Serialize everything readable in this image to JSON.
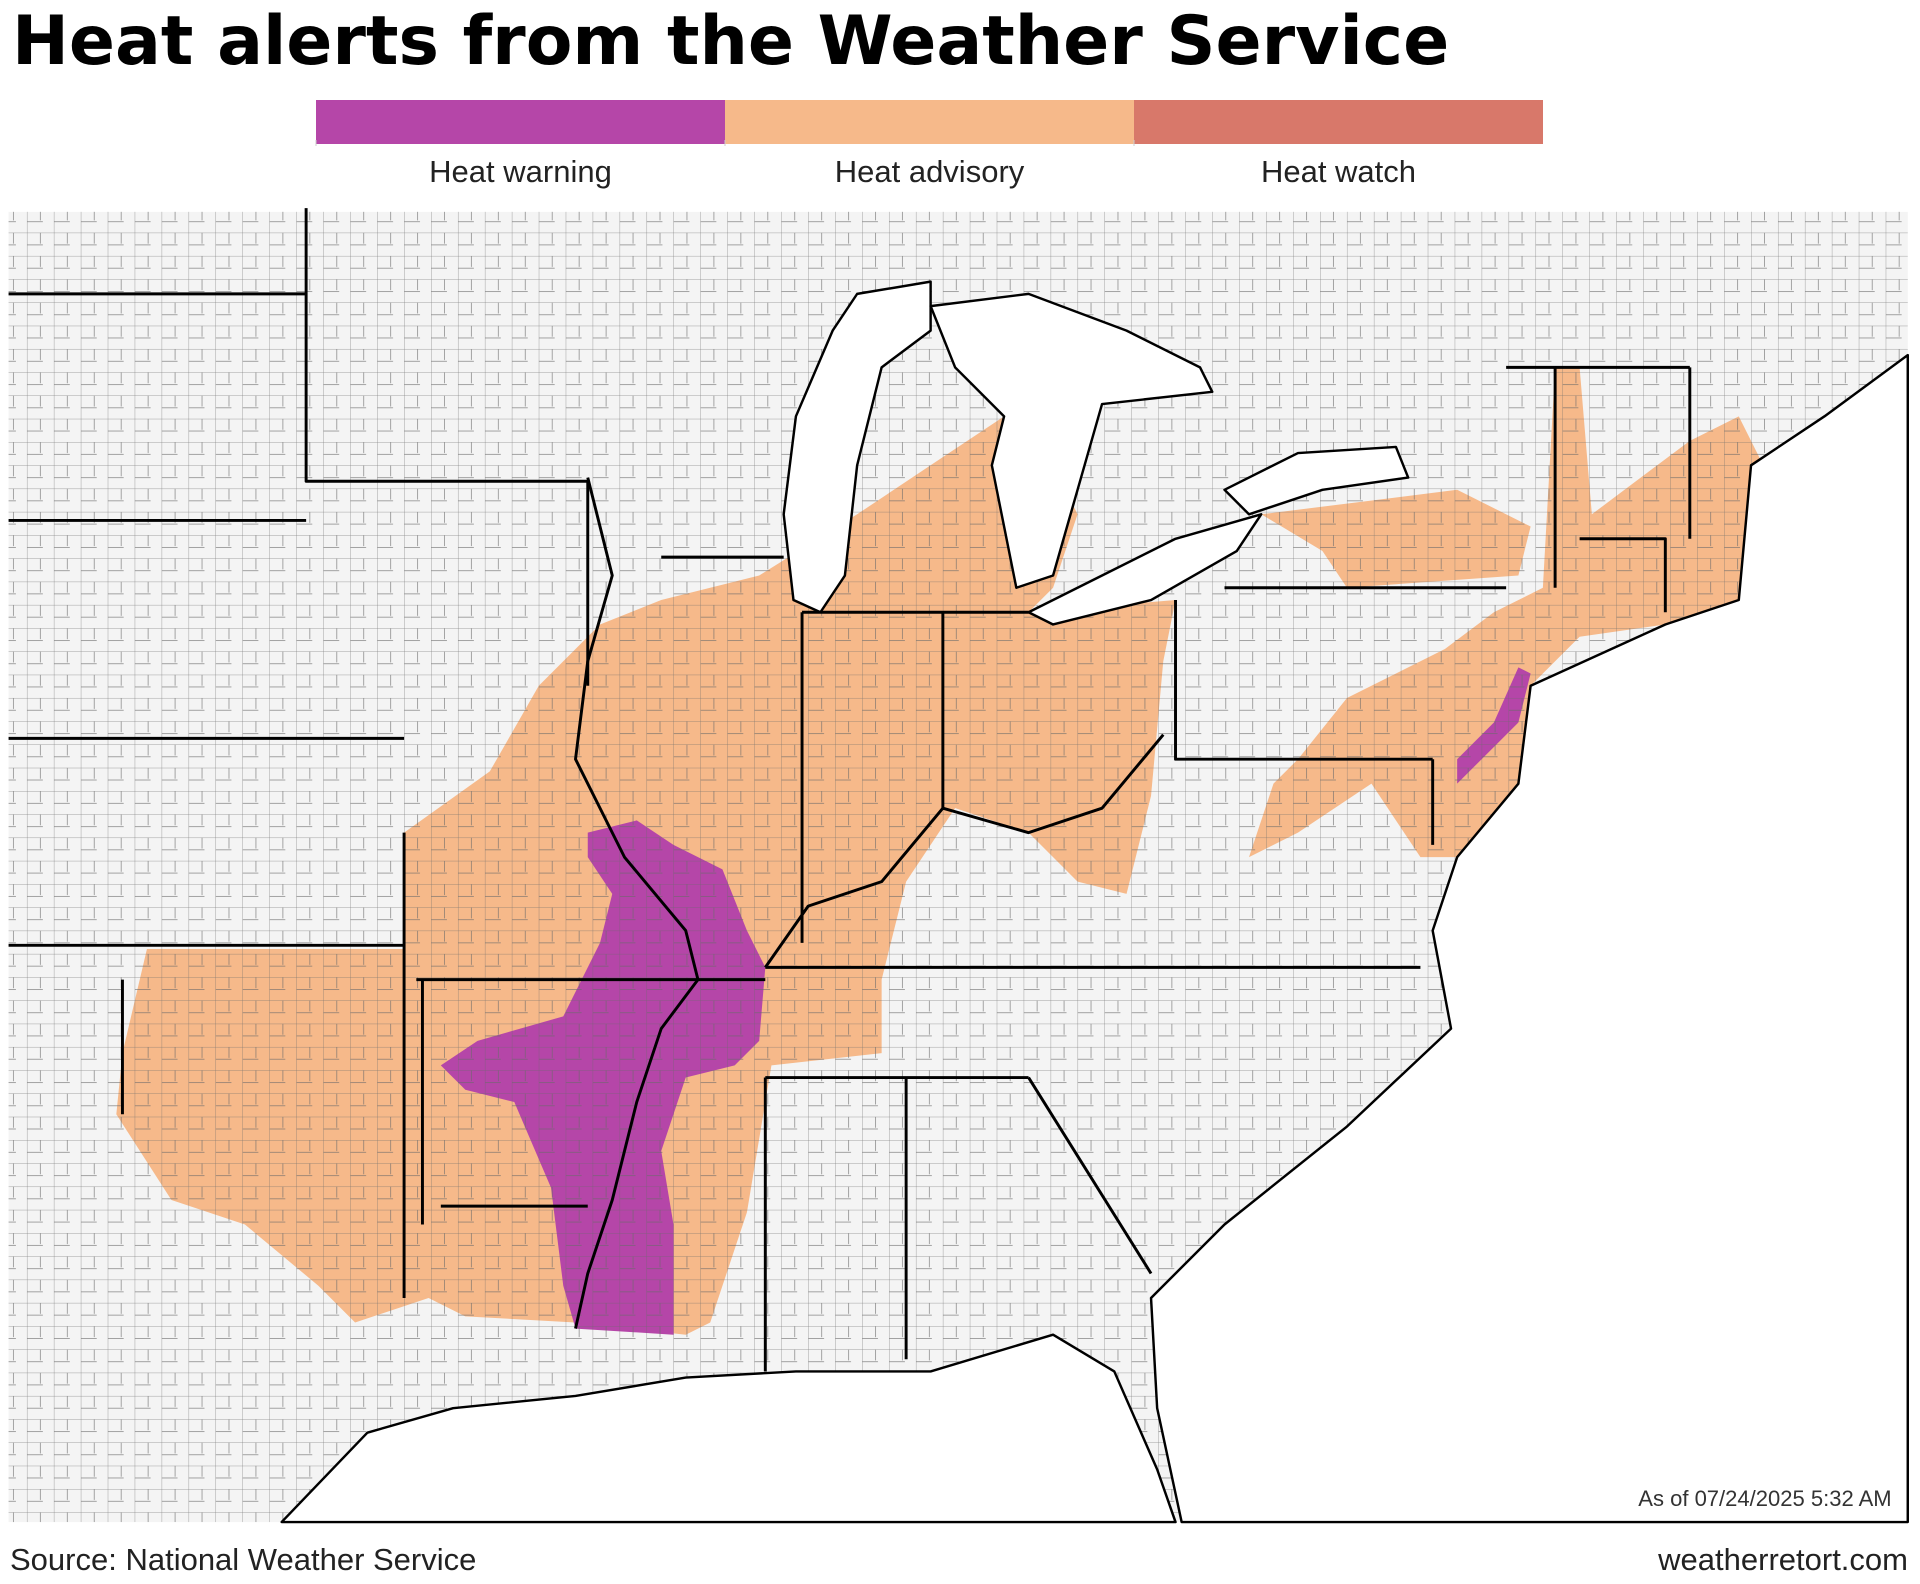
{
  "title": "Heat alerts from the Weather Service",
  "legend": {
    "items": [
      {
        "label": "Heat warning",
        "color": "#b546a8"
      },
      {
        "label": "Heat advisory",
        "color": "#f6b98a"
      },
      {
        "label": "Heat watch",
        "color": "#d8786a"
      }
    ]
  },
  "timestamp": "As of 07/24/2025 5:32 AM",
  "source": "Source: National Weather Service",
  "credit": "weatherretort.com"
}
